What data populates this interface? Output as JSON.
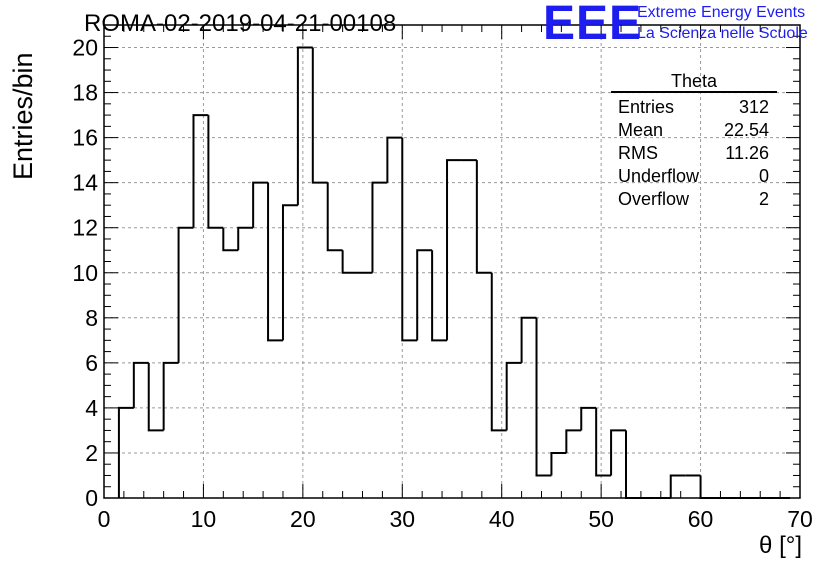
{
  "header": {
    "run_title": "ROMA-02-2019-04-21-00108",
    "logo_text": "EEE",
    "logo_line1": "Extreme Energy Events",
    "logo_line2": "La Scienza nelle Scuole",
    "logo_color": "#1d1df0"
  },
  "stats_box": {
    "title": "Theta",
    "rows": [
      {
        "label": "Entries",
        "value": "312"
      },
      {
        "label": "Mean",
        "value": "22.54"
      },
      {
        "label": "RMS",
        "value": "11.26"
      },
      {
        "label": "Underflow",
        "value": "0"
      },
      {
        "label": "Overflow",
        "value": "2"
      }
    ]
  },
  "chart_data": {
    "type": "bar",
    "style": "step-histogram",
    "title": "ROMA-02-2019-04-21-00108",
    "xlabel": "θ [°]",
    "ylabel": "Entries/bin",
    "xlim": [
      0,
      70
    ],
    "ylim": [
      0,
      21
    ],
    "x_ticks": [
      0,
      10,
      20,
      30,
      40,
      50,
      60,
      70
    ],
    "y_ticks": [
      0,
      2,
      4,
      6,
      8,
      10,
      12,
      14,
      16,
      18,
      20
    ],
    "grid": true,
    "bin_width": 1.5,
    "bin_edges_start": 1.5,
    "values": [
      4,
      6,
      3,
      6,
      12,
      17,
      12,
      11,
      12,
      14,
      7,
      13,
      20,
      14,
      11,
      10,
      10,
      14,
      16,
      7,
      11,
      7,
      15,
      15,
      10,
      3,
      6,
      8,
      1,
      2,
      3,
      4,
      1,
      3,
      0,
      0,
      0,
      1,
      1,
      0,
      0,
      0,
      0,
      0,
      0
    ]
  }
}
